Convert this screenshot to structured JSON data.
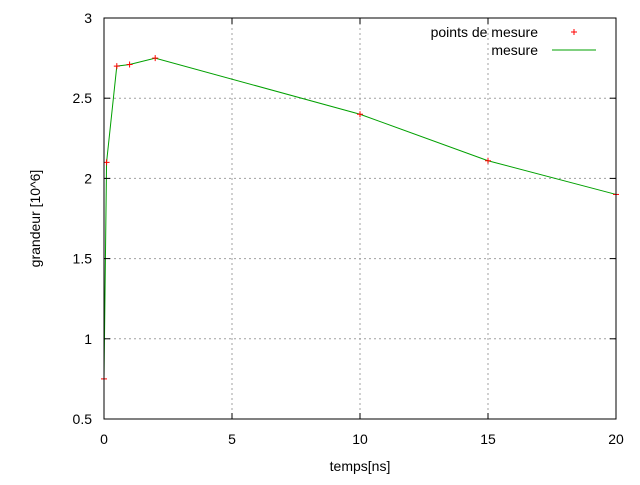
{
  "chart_data": {
    "type": "line",
    "title": "",
    "xlabel": "temps[ns]",
    "ylabel": "grandeur [10^6]",
    "xlim": [
      0,
      20
    ],
    "ylim": [
      0.5,
      3
    ],
    "x_ticks": [
      0,
      5,
      10,
      15,
      20
    ],
    "x_tick_labels": [
      "0",
      "5",
      "10",
      "15",
      "20"
    ],
    "y_ticks": [
      0.5,
      1,
      1.5,
      2,
      2.5,
      3
    ],
    "y_tick_labels": [
      "0.5",
      "1",
      "1.5",
      "2",
      "2.5",
      "3"
    ],
    "grid": true,
    "legend_position": "top-right",
    "series": [
      {
        "name": "points de mesure",
        "style": "points",
        "marker": "+",
        "color": "#ff0000",
        "x": [
          0,
          0.1,
          0.5,
          1,
          2,
          10,
          15,
          20
        ],
        "y": [
          0.75,
          2.1,
          2.7,
          2.71,
          2.75,
          2.4,
          2.11,
          1.9
        ]
      },
      {
        "name": "mesure",
        "style": "line",
        "color": "#00a000",
        "x": [
          0,
          0.1,
          0.5,
          1,
          2,
          10,
          15,
          20
        ],
        "y": [
          0.75,
          2.1,
          2.7,
          2.71,
          2.75,
          2.4,
          2.11,
          1.9
        ]
      }
    ]
  }
}
